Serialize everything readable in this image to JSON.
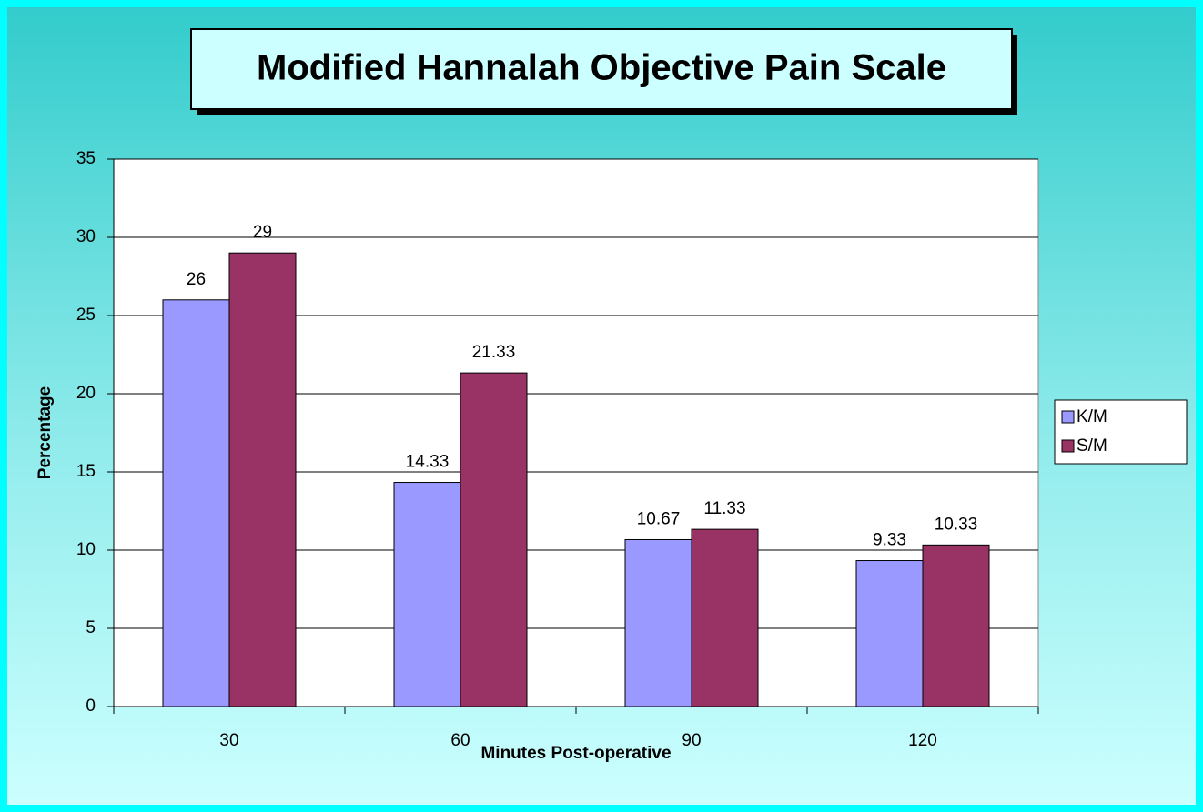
{
  "chart_data": {
    "type": "bar",
    "title": "Modified Hannalah Objective Pain Scale",
    "x_label": "Minutes Post-operative",
    "y_label": "Percentage",
    "categories": [
      "30",
      "60",
      "90",
      "120"
    ],
    "series": [
      {
        "name": "K/M",
        "color": "#9999ff",
        "values": [
          26,
          14.33,
          10.67,
          9.33
        ]
      },
      {
        "name": "S/M",
        "color": "#993366",
        "values": [
          29,
          21.33,
          11.33,
          10.33
        ]
      }
    ],
    "ylim": [
      0,
      35
    ],
    "yticks": [
      0,
      5,
      10,
      15,
      20,
      25,
      30,
      35
    ],
    "grid": true,
    "legend": "right"
  }
}
